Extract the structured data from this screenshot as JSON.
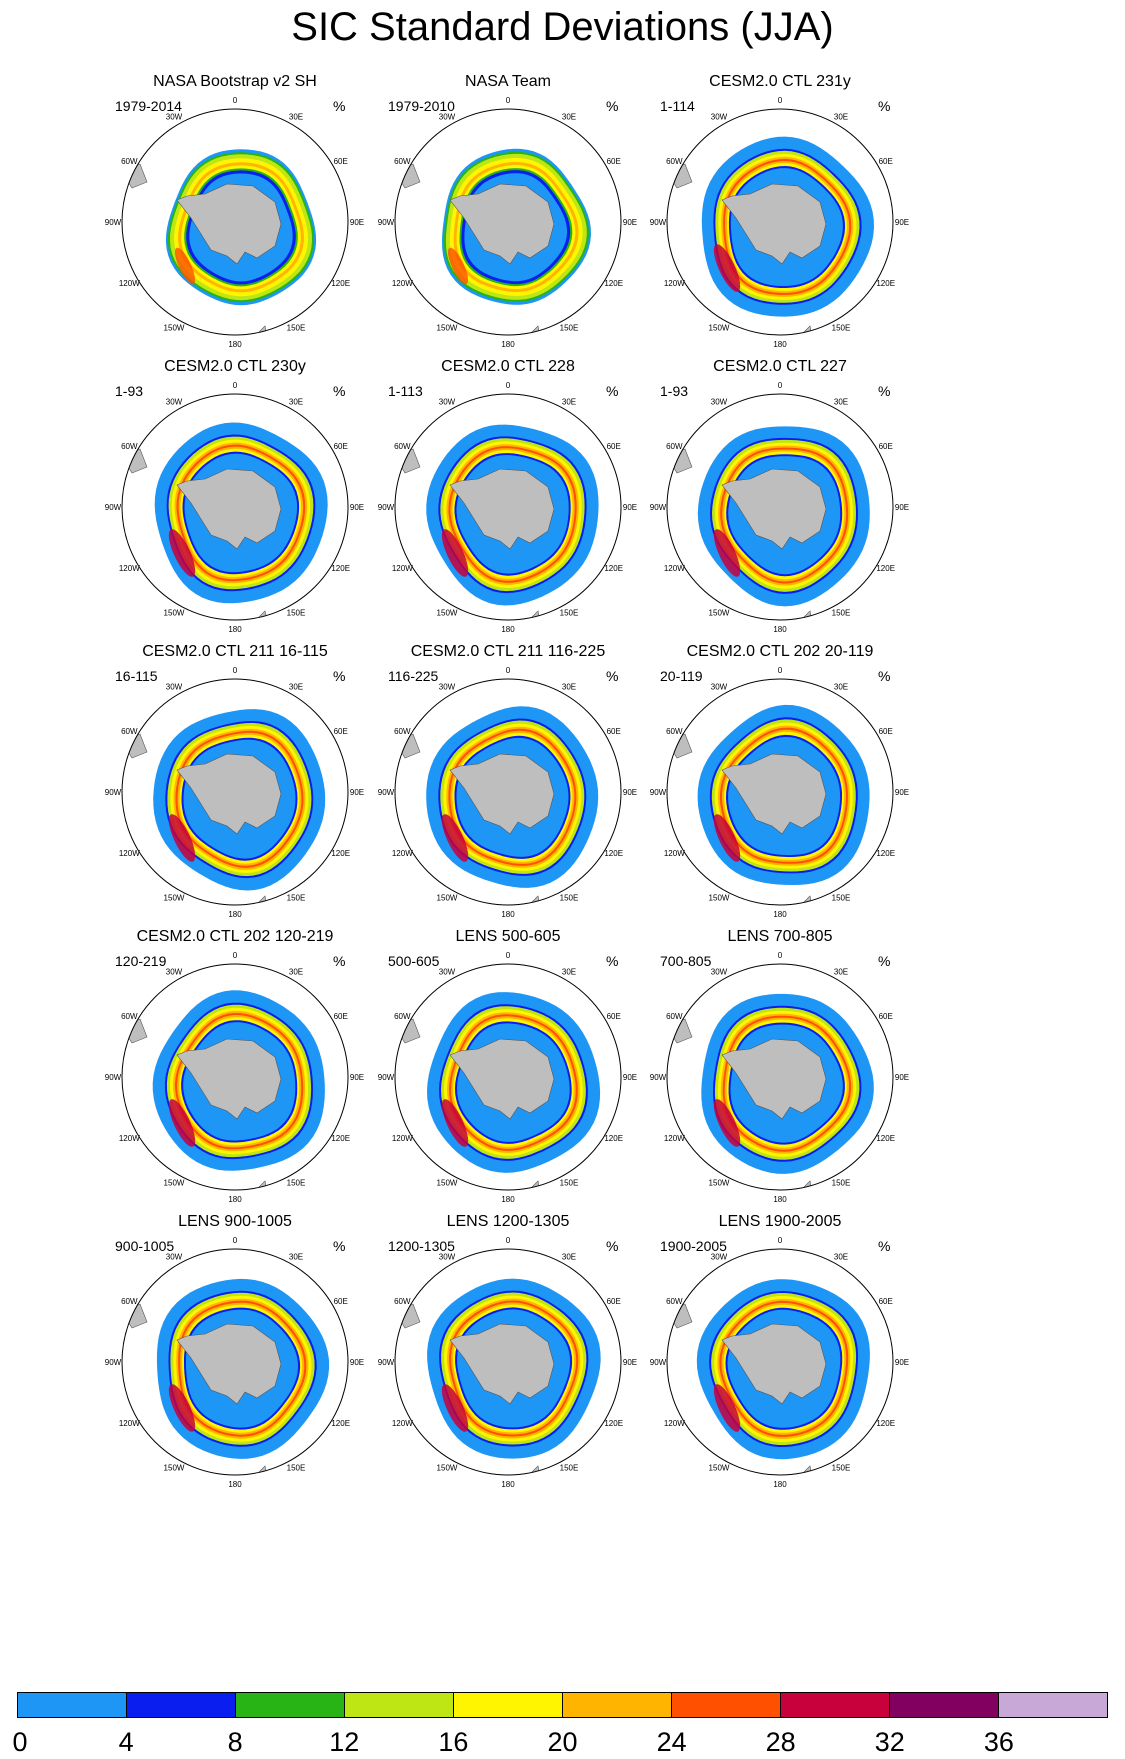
{
  "title": "SIC Standard Deviations (JJA)",
  "unit": "%",
  "longitude_labels": [
    "0",
    "30E",
    "60E",
    "90E",
    "120E",
    "150E",
    "180",
    "150W",
    "120W",
    "90W",
    "60W",
    "30W"
  ],
  "panels": [
    {
      "title": "NASA Bootstrap v2 SH",
      "period": "1979-2014"
    },
    {
      "title": "NASA Team",
      "period": "1979-2010"
    },
    {
      "title": "CESM2.0 CTL 231y",
      "period": "1-114"
    },
    {
      "title": "CESM2.0 CTL 230y",
      "period": "1-93"
    },
    {
      "title": "CESM2.0 CTL 228",
      "period": "1-113"
    },
    {
      "title": "CESM2.0 CTL 227",
      "period": "1-93"
    },
    {
      "title": "CESM2.0 CTL 211 16-115",
      "period": "16-115"
    },
    {
      "title": "CESM2.0 CTL 211 116-225",
      "period": "116-225"
    },
    {
      "title": "CESM2.0 CTL 202 20-119",
      "period": "20-119"
    },
    {
      "title": "CESM2.0 CTL 202 120-219",
      "period": "120-219"
    },
    {
      "title": "LENS 500-605",
      "period": "500-605"
    },
    {
      "title": "LENS 700-805",
      "period": "700-805"
    },
    {
      "title": "LENS 900-1005",
      "period": "900-1005"
    },
    {
      "title": "LENS 1200-1305",
      "period": "1200-1305"
    },
    {
      "title": "LENS 1900-2005",
      "period": "1900-2005"
    }
  ],
  "colorbar": {
    "labels": [
      "0",
      "4",
      "8",
      "12",
      "16",
      "20",
      "24",
      "28",
      "32",
      "36"
    ],
    "colors": [
      "#1E96F5",
      "#0A1EF0",
      "#28B414",
      "#BEE614",
      "#FFF500",
      "#FFB400",
      "#FF5000",
      "#C8003C",
      "#82005F",
      "#C8A8D6"
    ]
  },
  "colors": {
    "land": "#BEBEBE",
    "ocean": "#FFFFFF"
  }
}
